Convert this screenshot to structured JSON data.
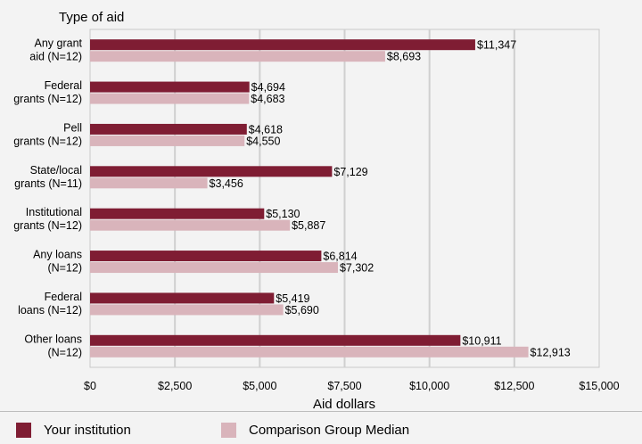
{
  "chart_data": {
    "type": "bar",
    "orientation": "horizontal",
    "title": "Type of aid",
    "xlabel": "Aid dollars",
    "xlim": [
      0,
      15000
    ],
    "xticks": [
      {
        "value": 0,
        "label": "$0"
      },
      {
        "value": 2500,
        "label": "$2,500"
      },
      {
        "value": 5000,
        "label": "$5,000"
      },
      {
        "value": 7500,
        "label": "$7,500"
      },
      {
        "value": 10000,
        "label": "$10,000"
      },
      {
        "value": 12500,
        "label": "$12,500"
      },
      {
        "value": 15000,
        "label": "$15,000"
      }
    ],
    "grid": true,
    "categories": [
      [
        "Any grant",
        "aid (N=12)"
      ],
      [
        "Federal",
        "grants (N=12)"
      ],
      [
        "Pell",
        "grants (N=12)"
      ],
      [
        "State/local",
        "grants (N=11)"
      ],
      [
        "Institutional",
        "grants (N=12)"
      ],
      [
        "Any loans",
        "(N=12)"
      ],
      [
        "Federal",
        "loans (N=12)"
      ],
      [
        "Other loans",
        "(N=12)"
      ]
    ],
    "series": [
      {
        "name": "Your institution",
        "color": "#7f1d33",
        "values": [
          11347,
          4694,
          4618,
          7129,
          5130,
          6814,
          5419,
          10911
        ],
        "labels": [
          "$11,347",
          "$4,694",
          "$4,618",
          "$7,129",
          "$5,130",
          "$6,814",
          "$5,419",
          "$10,911"
        ]
      },
      {
        "name": "Comparison Group Median",
        "color": "#d9b4bb",
        "values": [
          8693,
          4683,
          4550,
          3456,
          5887,
          7302,
          5690,
          12913
        ],
        "labels": [
          "$8,693",
          "$4,683",
          "$4,550",
          "$3,456",
          "$5,887",
          "$7,302",
          "$5,690",
          "$12,913"
        ]
      }
    ],
    "legend_position": "bottom"
  }
}
